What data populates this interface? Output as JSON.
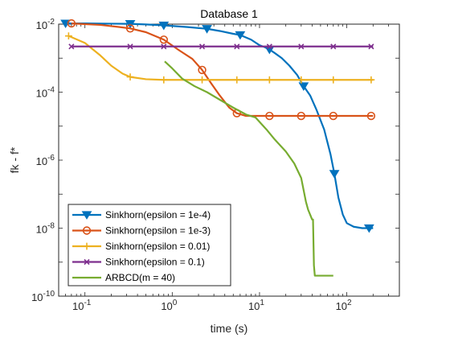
{
  "chart_data": {
    "type": "line",
    "title": "Database 1",
    "xlabel": "time (s)",
    "ylabel": "fk - f*",
    "xscale": "log",
    "yscale": "log",
    "xlim": [
      0.05,
      400
    ],
    "ylim": [
      1e-10,
      0.01
    ],
    "x_ticks": [
      {
        "value": 0.1,
        "base": "10",
        "exp": "-1"
      },
      {
        "value": 1,
        "base": "10",
        "exp": "0"
      },
      {
        "value": 10,
        "base": "10",
        "exp": "1"
      },
      {
        "value": 100,
        "base": "10",
        "exp": "2"
      }
    ],
    "y_ticks": [
      {
        "value": 1e-10,
        "base": "10",
        "exp": "-10"
      },
      {
        "value": 1e-08,
        "base": "10",
        "exp": "-8"
      },
      {
        "value": 1e-06,
        "base": "10",
        "exp": "-6"
      },
      {
        "value": 0.0001,
        "base": "10",
        "exp": "-4"
      },
      {
        "value": 0.01,
        "base": "10",
        "exp": "-2"
      }
    ],
    "grid": false,
    "legend_position": "bottom-left",
    "series": [
      {
        "name": "Sinkhorn(epsilon = 1e-4)",
        "color": "#0072BD",
        "marker": "triangle-down",
        "points": [
          [
            0.06,
            0.0105
          ],
          [
            0.1,
            0.0105
          ],
          [
            0.2,
            0.0103
          ],
          [
            0.33,
            0.0102
          ],
          [
            0.5,
            0.0098
          ],
          [
            0.8,
            0.0092
          ],
          [
            1.5,
            0.0082
          ],
          [
            2.5,
            0.0073
          ],
          [
            3.5,
            0.0063
          ],
          [
            5.0,
            0.0052
          ],
          [
            6.0,
            0.0048
          ],
          [
            8.0,
            0.0035
          ],
          [
            10.0,
            0.0024
          ],
          [
            11.5,
            0.0021
          ],
          [
            13.0,
            0.0018
          ],
          [
            15.0,
            0.0014
          ],
          [
            18.0,
            0.001
          ],
          [
            22.0,
            0.0006
          ],
          [
            27.0,
            0.00032
          ],
          [
            32.0,
            0.00015
          ],
          [
            38.0,
            8e-05
          ],
          [
            45.0,
            3e-05
          ],
          [
            55.0,
            8e-06
          ],
          [
            65.0,
            1.5e-06
          ],
          [
            72.0,
            4e-07
          ],
          [
            80.0,
            8e-08
          ],
          [
            90.0,
            2.5e-08
          ],
          [
            100.0,
            1.4e-08
          ],
          [
            120.0,
            1.1e-08
          ],
          [
            150.0,
            1e-08
          ],
          [
            200.0,
            1e-08
          ]
        ],
        "marker_x": [
          0.06,
          0.33,
          0.8,
          2.5,
          6.0,
          13.0,
          32.0,
          72.0,
          180.0
        ]
      },
      {
        "name": "Sinkhorn(epsilon = 1e-3)",
        "color": "#D95319",
        "marker": "circle",
        "points": [
          [
            0.07,
            0.0105
          ],
          [
            0.15,
            0.0095
          ],
          [
            0.25,
            0.0082
          ],
          [
            0.33,
            0.0075
          ],
          [
            0.5,
            0.0058
          ],
          [
            0.8,
            0.0035
          ],
          [
            1.2,
            0.0017
          ],
          [
            1.7,
            0.00095
          ],
          [
            2.2,
            0.00045
          ],
          [
            2.8,
            0.00018
          ],
          [
            3.5,
            8e-05
          ],
          [
            4.5,
            3.5e-05
          ],
          [
            5.5,
            2.4e-05
          ],
          [
            7.0,
            2e-05
          ],
          [
            10.0,
            2e-05
          ],
          [
            200.0,
            2e-05
          ]
        ],
        "marker_x": [
          0.07,
          0.33,
          0.8,
          2.2,
          5.5,
          13.0,
          30.0,
          70.0,
          190.0
        ]
      },
      {
        "name": "Sinkhorn(epsilon = 0.01)",
        "color": "#EDB120",
        "marker": "plus",
        "points": [
          [
            0.065,
            0.0045
          ],
          [
            0.1,
            0.0028
          ],
          [
            0.15,
            0.0012
          ],
          [
            0.2,
            0.0006
          ],
          [
            0.27,
            0.00035
          ],
          [
            0.33,
            0.00028
          ],
          [
            0.5,
            0.00024
          ],
          [
            0.8,
            0.00023
          ],
          [
            200.0,
            0.00023
          ]
        ],
        "marker_x": [
          0.065,
          0.33,
          0.8,
          2.2,
          5.5,
          13.0,
          30.0,
          70.0,
          190.0
        ]
      },
      {
        "name": "Sinkhorn(epsilon = 0.1)",
        "color": "#7E2F8E",
        "marker": "x",
        "points": [
          [
            0.07,
            0.0022
          ],
          [
            200.0,
            0.0022
          ]
        ],
        "marker_x": [
          0.07,
          0.33,
          0.8,
          2.2,
          5.5,
          13.0,
          30.0,
          70.0,
          190.0
        ]
      },
      {
        "name": "ARBCD(m = 40)",
        "color": "#77AC30",
        "marker": "none",
        "points": [
          [
            0.82,
            0.0008
          ],
          [
            1.0,
            0.0005
          ],
          [
            1.3,
            0.00025
          ],
          [
            1.8,
            0.00015
          ],
          [
            2.5,
            0.0001
          ],
          [
            3.5,
            6e-05
          ],
          [
            5.0,
            3.5e-05
          ],
          [
            7.0,
            2.2e-05
          ],
          [
            9.0,
            1.8e-05
          ],
          [
            12.0,
            8e-06
          ],
          [
            15.0,
            4e-06
          ],
          [
            20.0,
            1.8e-06
          ],
          [
            25.0,
            8e-07
          ],
          [
            30.0,
            3e-07
          ],
          [
            34.0,
            6e-08
          ],
          [
            36.0,
            3.5e-08
          ],
          [
            38.0,
            2.5e-08
          ],
          [
            40.0,
            1.8e-08
          ],
          [
            41.0,
            1.8e-08
          ],
          [
            42.0,
            8e-10
          ],
          [
            43.0,
            4e-10
          ],
          [
            45.0,
            4e-10
          ],
          [
            70.0,
            4e-10
          ]
        ],
        "marker_x": []
      }
    ]
  }
}
